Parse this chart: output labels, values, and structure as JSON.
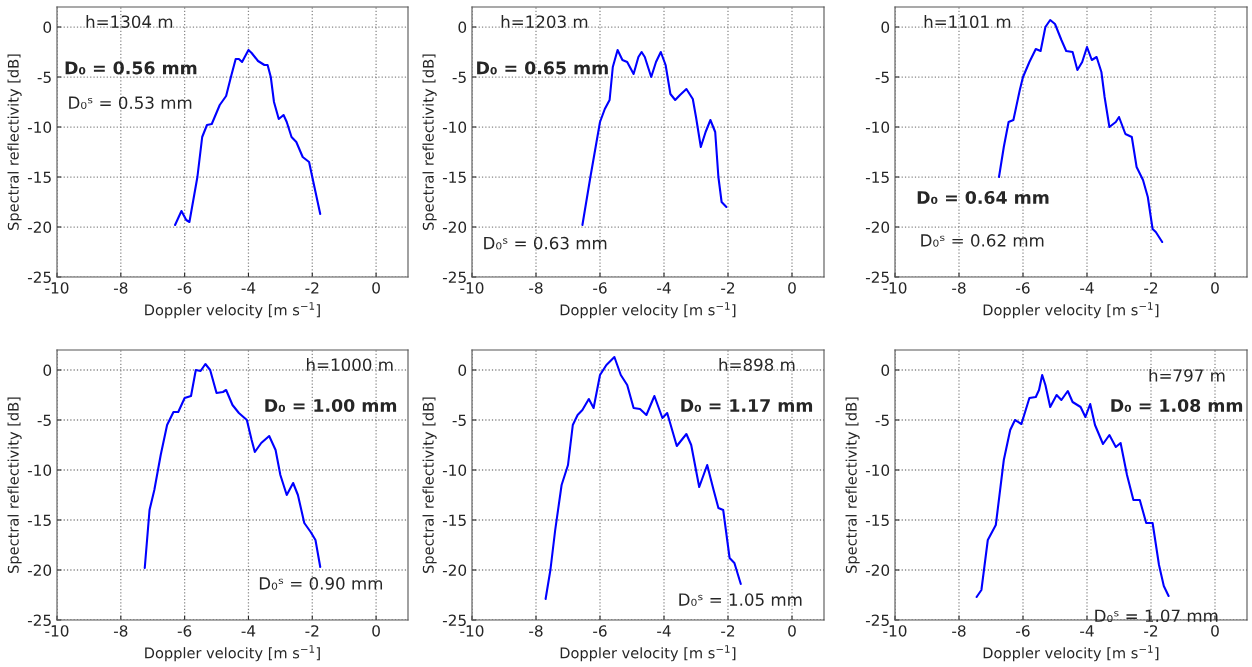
{
  "chart_data": [
    {
      "type": "line",
      "xlabel": "Doppler velocity [m s$^{−1}$]",
      "ylabel": "Spectral reflectivity [dB]",
      "xlim": [
        -10,
        1
      ],
      "ylim": [
        -25,
        2
      ],
      "xticks": [
        -10,
        -8,
        -6,
        -4,
        -2,
        0
      ],
      "yticks": [
        -25,
        -20,
        -15,
        -10,
        -5,
        0
      ],
      "grid": true,
      "line_style": "solid",
      "annotations": [
        "h=1304 m",
        "D₀ = 0.56 mm",
        "D₀ˢ = 0.53 mm"
      ],
      "series": [
        {
          "color": "#0000ff",
          "x": [
            -6.3,
            -6.1,
            -5.95,
            -5.85,
            -5.6,
            -5.45,
            -5.3,
            -5.15,
            -4.9,
            -4.7,
            -4.55,
            -4.4,
            -4.3,
            -4.2,
            -4.0,
            -3.9,
            -3.7,
            -3.5,
            -3.4,
            -3.3,
            -3.2,
            -3.05,
            -2.9,
            -2.8,
            -2.65,
            -2.5,
            -2.3,
            -2.1,
            -2.0,
            -1.75
          ],
          "values": [
            -19.8,
            -18.4,
            -19.3,
            -19.5,
            -15,
            -11,
            -9.8,
            -9.7,
            -7.8,
            -6.9,
            -5,
            -3.2,
            -3.2,
            -3.5,
            -2.3,
            -2.6,
            -3.4,
            -3.8,
            -3.8,
            -5,
            -7.5,
            -9.2,
            -8.8,
            -9.5,
            -11,
            -11.5,
            -13,
            -13.5,
            -15,
            -18.7
          ]
        }
      ]
    },
    {
      "type": "line",
      "xlabel": "Doppler velocity [m s$^{−1}$]",
      "ylabel": "Spectral reflectivity [dB]",
      "xlim": [
        -10,
        1
      ],
      "ylim": [
        -25,
        2
      ],
      "xticks": [
        -10,
        -8,
        -6,
        -4,
        -2,
        0
      ],
      "yticks": [
        -25,
        -20,
        -15,
        -10,
        -5,
        0
      ],
      "grid": true,
      "line_style": "solid",
      "annotations": [
        "h=1203 m",
        "D₀ = 0.65 mm",
        "D₀ˢ = 0.63 mm"
      ],
      "series": [
        {
          "color": "#0000ff",
          "x": [
            -6.55,
            -6.3,
            -6.0,
            -5.85,
            -5.7,
            -5.6,
            -5.45,
            -5.3,
            -5.15,
            -4.95,
            -4.8,
            -4.7,
            -4.6,
            -4.4,
            -4.25,
            -4.1,
            -3.95,
            -3.8,
            -3.65,
            -3.5,
            -3.3,
            -3.1,
            -3.0,
            -2.85,
            -2.7,
            -2.55,
            -2.4,
            -2.3,
            -2.2,
            -2.05
          ],
          "values": [
            -19.8,
            -15,
            -9.5,
            -8.2,
            -7.3,
            -4,
            -2.3,
            -3.3,
            -3.5,
            -4.7,
            -3,
            -2.5,
            -3,
            -5,
            -3.5,
            -2.5,
            -3.8,
            -6.7,
            -7.3,
            -6.8,
            -6.2,
            -7.2,
            -9,
            -12,
            -10.5,
            -9.3,
            -10.5,
            -15,
            -17.5,
            -18
          ]
        }
      ]
    },
    {
      "type": "line",
      "xlabel": "Doppler velocity [m s$^{−1}$]",
      "ylabel": null,
      "xlim": [
        -10,
        1
      ],
      "ylim": [
        -25,
        2
      ],
      "xticks": [
        -10,
        -8,
        -6,
        -4,
        -2,
        0
      ],
      "yticks": [
        -25,
        -20,
        -15,
        -10,
        -5,
        0
      ],
      "grid": true,
      "line_style": "solid",
      "annotations": [
        "h=1101 m",
        "D₀ = 0.64 mm",
        "D₀ˢ = 0.62 mm"
      ],
      "series": [
        {
          "color": "#0000ff",
          "x": [
            -6.75,
            -6.6,
            -6.45,
            -6.3,
            -6.1,
            -6.0,
            -5.8,
            -5.6,
            -5.45,
            -5.3,
            -5.15,
            -5.0,
            -4.8,
            -4.65,
            -4.45,
            -4.3,
            -4.15,
            -4.0,
            -3.85,
            -3.7,
            -3.55,
            -3.45,
            -3.3,
            -3.1,
            -3.0,
            -2.8,
            -2.6,
            -2.45,
            -2.25,
            -2.1,
            -1.95,
            -1.85,
            -1.65
          ],
          "values": [
            -15,
            -12,
            -9.5,
            -9.3,
            -6.3,
            -5,
            -3.5,
            -2.2,
            -2.4,
            0,
            0.7,
            0.3,
            -1.3,
            -2.4,
            -2.5,
            -4.3,
            -3.5,
            -2,
            -3.3,
            -3,
            -4.5,
            -7,
            -10,
            -9.5,
            -9,
            -10.7,
            -11,
            -14,
            -15.3,
            -17,
            -20.2,
            -20.5,
            -21.5
          ]
        }
      ]
    },
    {
      "type": "line",
      "xlabel": "Doppler velocity [m s$^{−1}$]",
      "ylabel": "Spectral reflectivity [dB]",
      "xlim": [
        -10,
        1
      ],
      "ylim": [
        -25,
        2
      ],
      "xticks": [
        -10,
        -8,
        -6,
        -4,
        -2,
        0
      ],
      "yticks": [
        -25,
        -20,
        -15,
        -10,
        -5,
        0
      ],
      "grid": true,
      "line_style": "solid",
      "annotations": [
        "h=1000 m",
        "D₀ = 1.00 mm",
        "D₀ˢ = 0.90 mm"
      ],
      "series": [
        {
          "color": "#0000ff",
          "x": [
            -7.25,
            -7.1,
            -6.95,
            -6.75,
            -6.55,
            -6.35,
            -6.2,
            -6.0,
            -5.8,
            -5.65,
            -5.5,
            -5.35,
            -5.2,
            -5.0,
            -4.8,
            -4.7,
            -4.5,
            -4.3,
            -4.05,
            -3.9,
            -3.8,
            -3.6,
            -3.35,
            -3.15,
            -3.0,
            -2.8,
            -2.6,
            -2.45,
            -2.25,
            -2.05,
            -1.9,
            -1.75
          ],
          "values": [
            -19.8,
            -14,
            -12,
            -8.5,
            -5.5,
            -4.2,
            -4.2,
            -2.8,
            -2.6,
            0,
            -0.1,
            0.6,
            0,
            -2.3,
            -2.2,
            -2,
            -3.5,
            -4.3,
            -5,
            -7,
            -8.2,
            -7.3,
            -6.6,
            -8,
            -10.5,
            -12.5,
            -11.3,
            -12.5,
            -15.3,
            -16.2,
            -17,
            -19.7
          ]
        }
      ]
    },
    {
      "type": "line",
      "xlabel": "Doppler velocity [m s$^{−1}$]",
      "ylabel": "Spectral reflectivity [dB]",
      "xlim": [
        -10,
        1
      ],
      "ylim": [
        -25,
        2
      ],
      "xticks": [
        -10,
        -8,
        -6,
        -4,
        -2,
        0
      ],
      "yticks": [
        -25,
        -20,
        -15,
        -10,
        -5,
        0
      ],
      "grid": true,
      "line_style": "solid",
      "annotations": [
        "h=898 m",
        "D₀ = 1.17 mm",
        "D₀ˢ = 1.05 mm"
      ],
      "series": [
        {
          "color": "#0000ff",
          "x": [
            -7.7,
            -7.55,
            -7.4,
            -7.2,
            -7.0,
            -6.85,
            -6.7,
            -6.55,
            -6.35,
            -6.2,
            -6.0,
            -5.8,
            -5.55,
            -5.35,
            -5.15,
            -4.95,
            -4.75,
            -4.55,
            -4.3,
            -4.05,
            -3.9,
            -3.6,
            -3.3,
            -3.15,
            -2.9,
            -2.65,
            -2.45,
            -2.3,
            -2.15,
            -1.95,
            -1.8,
            -1.6
          ],
          "values": [
            -22.9,
            -20,
            -16,
            -11.5,
            -9.5,
            -5.5,
            -4.5,
            -4,
            -2.9,
            -3.8,
            -0.5,
            0.5,
            1.3,
            -0.5,
            -1.5,
            -3.8,
            -3.9,
            -4.5,
            -2.6,
            -4.8,
            -4.3,
            -7.6,
            -6.4,
            -7.5,
            -11.7,
            -9.5,
            -12,
            -13.8,
            -14,
            -18.8,
            -19.3,
            -21.4
          ]
        }
      ]
    },
    {
      "type": "line",
      "xlabel": "Doppler velocity [m s$^{−1}$]",
      "ylabel": "Spectral reflectivity [dB]",
      "xlim": [
        -10,
        1
      ],
      "ylim": [
        -25,
        2
      ],
      "xticks": [
        -10,
        -8,
        -6,
        -4,
        -2,
        0
      ],
      "yticks": [
        -25,
        -20,
        -15,
        -10,
        -5,
        0
      ],
      "grid": true,
      "line_style": "solid",
      "annotations": [
        "h=797 m",
        "D₀ = 1.08 mm",
        "D₀ˢ = 1.07 mm"
      ],
      "series": [
        {
          "color": "#0000ff",
          "x": [
            -7.45,
            -7.3,
            -7.1,
            -6.85,
            -6.6,
            -6.4,
            -6.25,
            -6.05,
            -5.8,
            -5.6,
            -5.5,
            -5.4,
            -5.3,
            -5.15,
            -4.95,
            -4.8,
            -4.6,
            -4.45,
            -4.2,
            -4.05,
            -3.9,
            -3.75,
            -3.5,
            -3.3,
            -3.1,
            -2.95,
            -2.75,
            -2.55,
            -2.35,
            -2.15,
            -1.95,
            -1.75,
            -1.6,
            -1.45
          ],
          "values": [
            -22.7,
            -22,
            -17,
            -15.5,
            -9,
            -6,
            -5,
            -5.4,
            -2.8,
            -2.7,
            -2,
            -0.5,
            -1.5,
            -3.7,
            -2.5,
            -3,
            -2.1,
            -3.2,
            -3.7,
            -4.7,
            -3.4,
            -5.5,
            -7.4,
            -6.5,
            -7.7,
            -7.3,
            -10.5,
            -13,
            -13,
            -15.3,
            -15.3,
            -19.5,
            -21.6,
            -22.6
          ]
        }
      ]
    }
  ]
}
